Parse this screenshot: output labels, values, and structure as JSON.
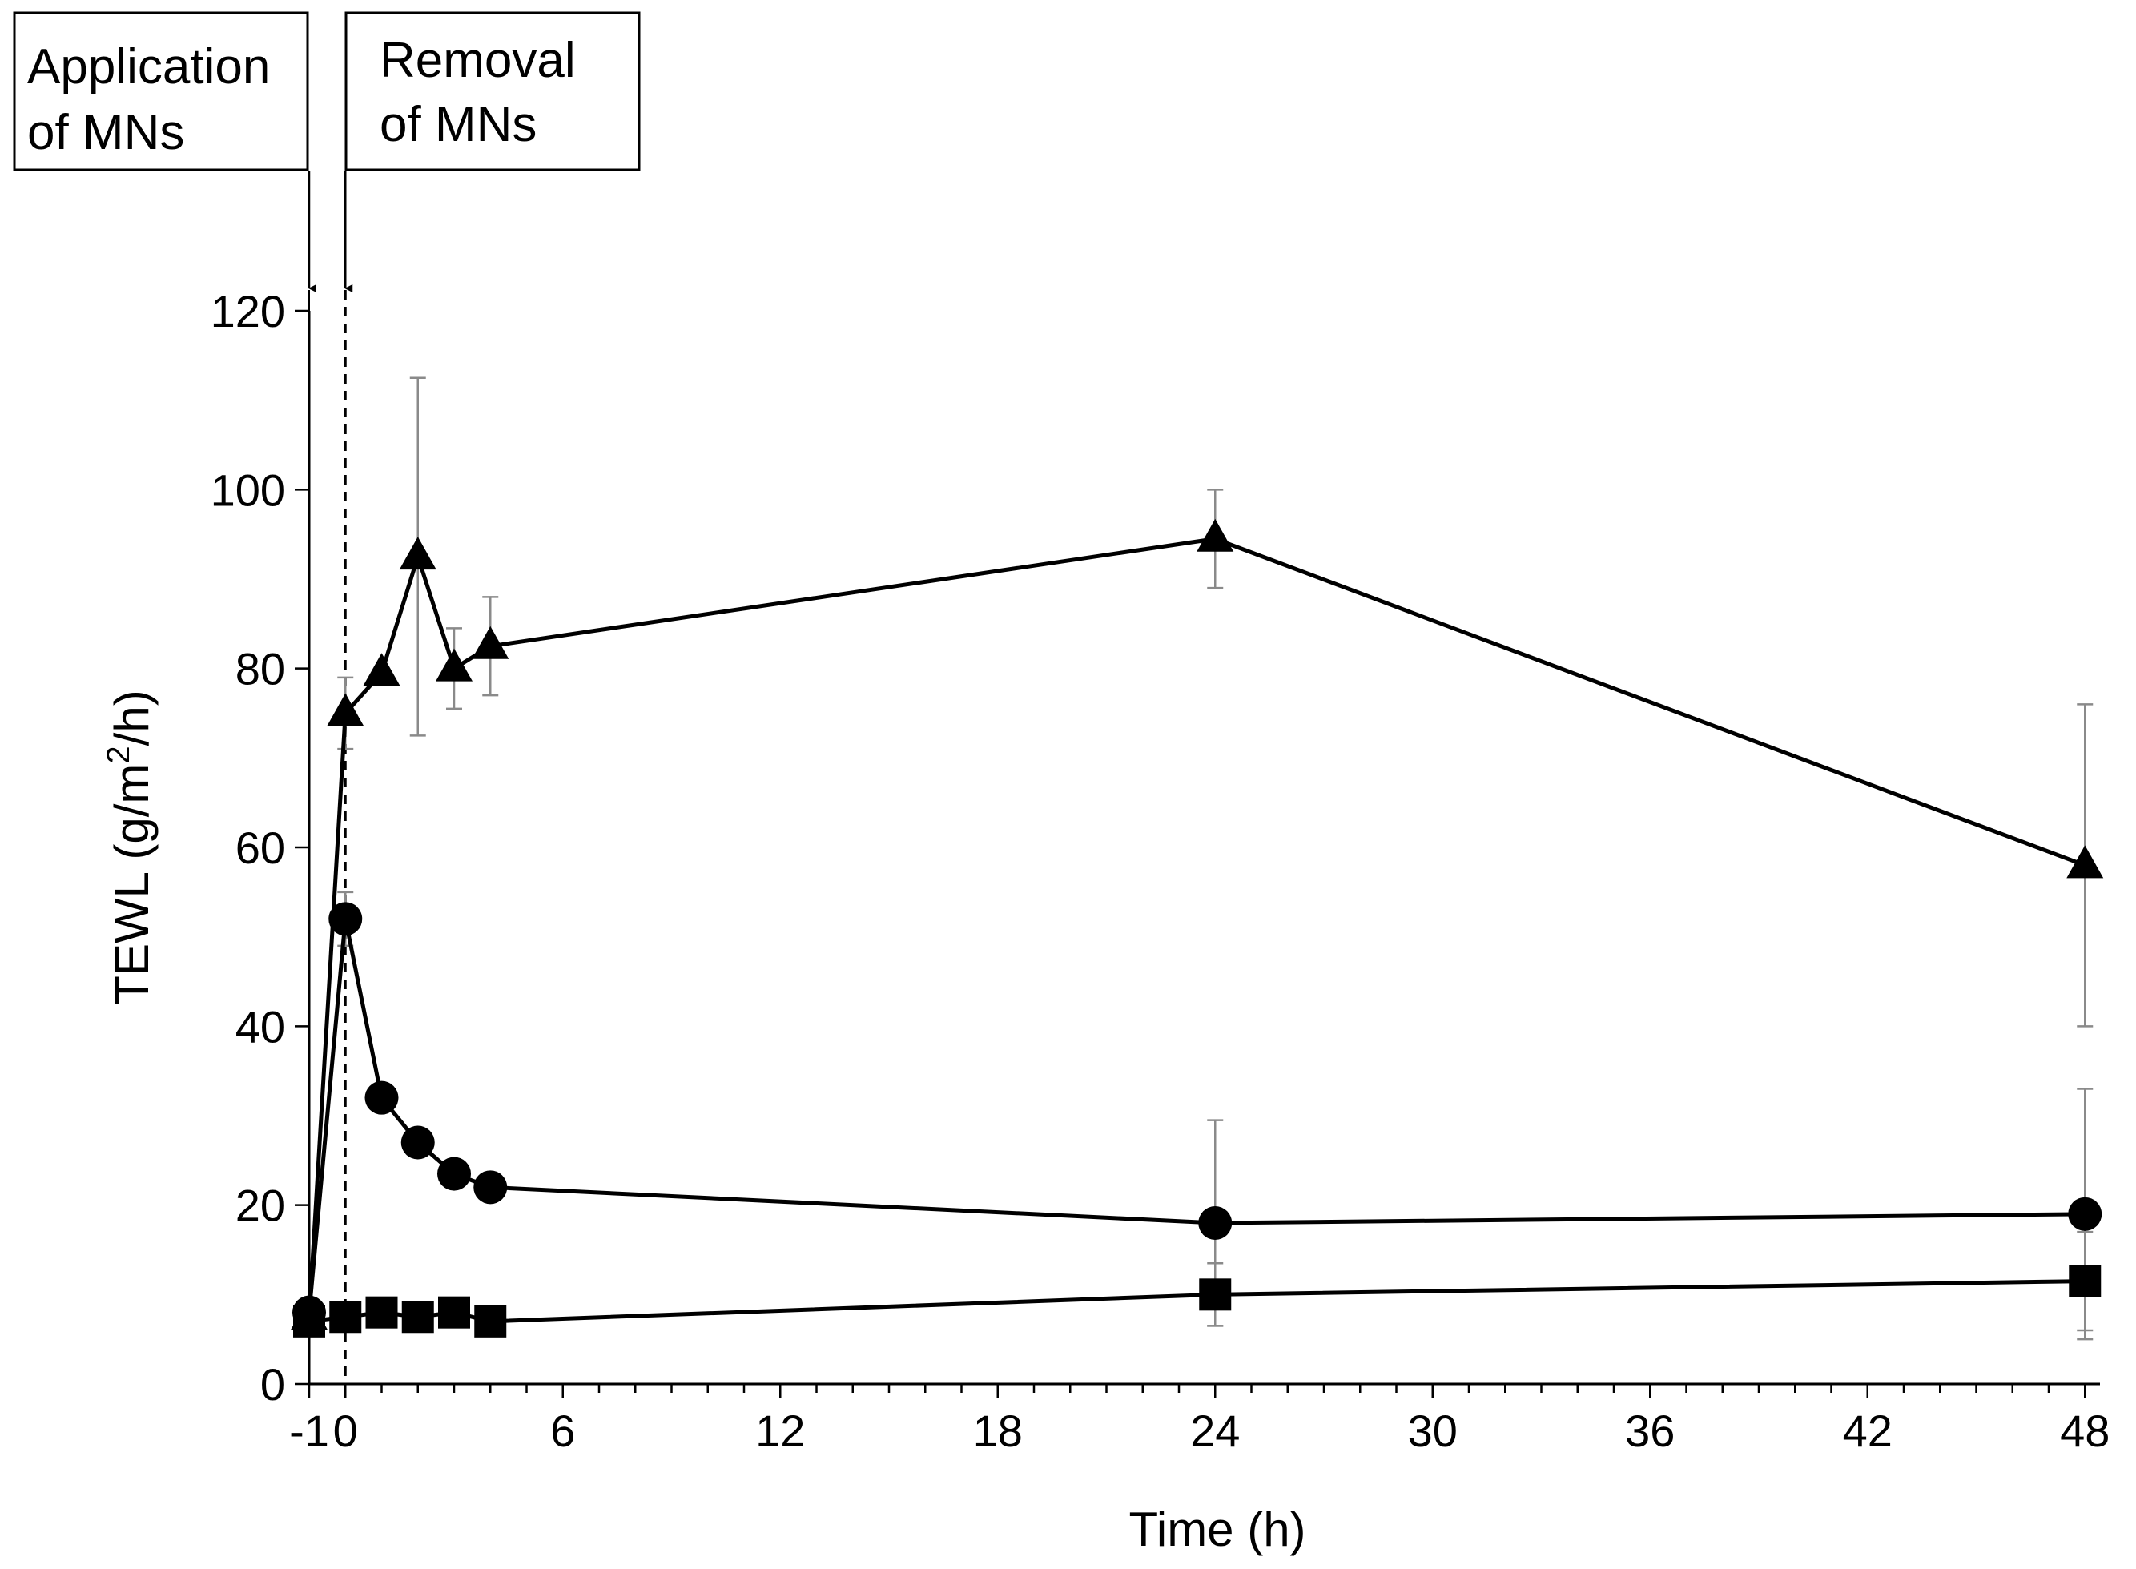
{
  "chart_data": {
    "type": "line",
    "title": "",
    "xlabel": "Time (h)",
    "ylabel": "TEWL (g/m²/h)",
    "ylabel_parts": [
      "TEWL (g/m",
      "2",
      "/h)"
    ],
    "xlim": [
      -1,
      49
    ],
    "ylim": [
      0,
      120
    ],
    "x_ticks": [
      -1,
      0,
      6,
      12,
      18,
      24,
      30,
      36,
      42,
      48
    ],
    "x_tick_labels": [
      "-1",
      "0",
      "6",
      "12",
      "18",
      "24",
      "30",
      "36",
      "42",
      "48"
    ],
    "y_ticks": [
      0,
      20,
      40,
      60,
      80,
      100,
      120
    ],
    "y_tick_labels": [
      "0",
      "20",
      "40",
      "60",
      "80",
      "100",
      "120"
    ],
    "series": [
      {
        "name": "triangle",
        "marker": "triangle",
        "x": [
          -1,
          0,
          1,
          2,
          3,
          4,
          24,
          48
        ],
        "y": [
          7.5,
          75,
          79.5,
          92.5,
          80,
          82.5,
          94.5,
          58
        ],
        "err": [
          0,
          4,
          0,
          20,
          4.5,
          5.5,
          5.5,
          18
        ]
      },
      {
        "name": "circle",
        "marker": "circle",
        "x": [
          -1,
          0,
          1,
          2,
          3,
          4,
          24,
          48
        ],
        "y": [
          8,
          52,
          32,
          27,
          23.5,
          22,
          18,
          19
        ],
        "err": [
          0,
          3,
          0,
          0,
          0,
          0,
          11.5,
          14
        ]
      },
      {
        "name": "square",
        "marker": "square",
        "x": [
          -1,
          0,
          1,
          2,
          3,
          4,
          24,
          48
        ],
        "y": [
          7,
          7.5,
          8,
          7.5,
          8,
          7,
          10,
          11.5
        ],
        "err": [
          0,
          0,
          0,
          0,
          0,
          0,
          3.5,
          5.5
        ]
      }
    ],
    "annotations": [
      {
        "lines": [
          "Application",
          "of MNs"
        ],
        "x": -1,
        "style": "solid-arrow"
      },
      {
        "lines": [
          "Removal",
          "of MNs"
        ],
        "x": 0,
        "style": "dashed-line"
      }
    ]
  }
}
